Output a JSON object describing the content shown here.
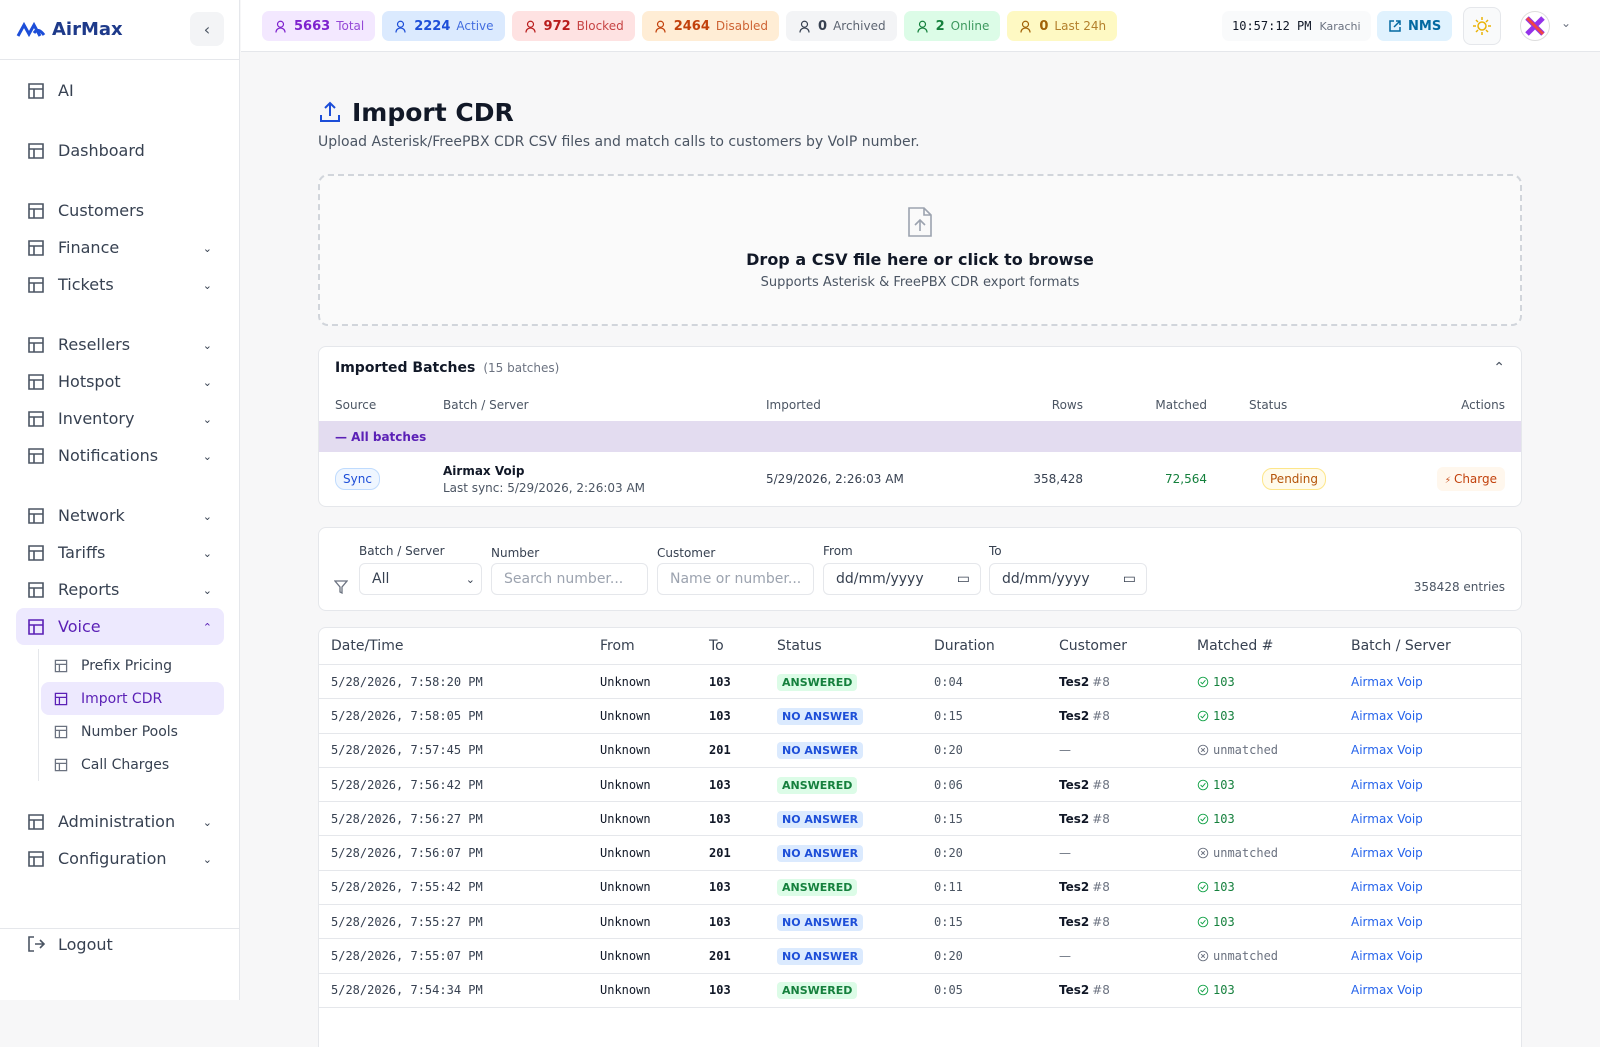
{
  "brand": "AirMax",
  "sidebar": {
    "groups": [
      [
        "AI"
      ],
      [
        "Dashboard"
      ],
      [
        "Customers",
        "Finance",
        "Tickets"
      ],
      [
        "Resellers",
        "Hotspot",
        "Inventory",
        "Notifications"
      ],
      [
        "Network",
        "Tariffs",
        "Reports",
        "Voice"
      ],
      [
        "Administration",
        "Configuration"
      ]
    ],
    "voice_submenu": [
      "Prefix Pricing",
      "Import CDR",
      "Number Pools",
      "Call Charges"
    ],
    "logout": "Logout"
  },
  "topbar": {
    "stats": [
      {
        "value": 5663,
        "label": "Total"
      },
      {
        "value": 2224,
        "label": "Active"
      },
      {
        "value": 972,
        "label": "Blocked"
      },
      {
        "value": 2464,
        "label": "Disabled"
      },
      {
        "value": 0,
        "label": "Archived"
      },
      {
        "value": 2,
        "label": "Online"
      },
      {
        "value": 0,
        "label": "Last 24h"
      }
    ],
    "time": "10:57:12 PM",
    "timezone": "Karachi",
    "nms": "NMS"
  },
  "header": {
    "title": "Import CDR",
    "subtitle": "Upload Asterisk/FreePBX CDR CSV files and match calls to customers by VoIP number."
  },
  "dropzone": {
    "title": "Drop a CSV file here or click to browse",
    "subtitle": "Supports Asterisk & FreePBX CDR export formats"
  },
  "batches": {
    "title": "Imported Batches",
    "count": "(15 batches)",
    "columns": [
      "Source",
      "Batch / Server",
      "Imported",
      "Rows",
      "Matched",
      "Status",
      "Actions"
    ],
    "group": "— All batches",
    "rows": [
      {
        "source": "Sync",
        "name": "Airmax Voip",
        "last_sync": "Last sync: 5/29/2026, 2:26:03 AM",
        "imported": "5/29/2026, 2:26:03 AM",
        "rows": "358,428",
        "matched": "72,564",
        "status": "Pending",
        "action": "Charge"
      }
    ]
  },
  "filters": {
    "labels": [
      "Batch / Server",
      "Number",
      "Customer",
      "From",
      "To"
    ],
    "batch_value": "All",
    "number_placeholder": "Search number...",
    "customer_placeholder": "Name or number...",
    "from_value": "dd/mm/yyyy",
    "to_value": "dd/mm/yyyy",
    "entries": "358428 entries"
  },
  "table": {
    "columns": [
      "Date/Time",
      "From",
      "To",
      "Status",
      "Duration",
      "Customer",
      "Matched #",
      "Batch / Server"
    ],
    "rows": [
      [
        "5/28/2026, 7:58:20 PM",
        "Unknown",
        "103",
        "ANSWERED",
        "0:04",
        "Tes2",
        "#8",
        "103",
        "Airmax Voip"
      ],
      [
        "5/28/2026, 7:58:05 PM",
        "Unknown",
        "103",
        "NO ANSWER",
        "0:15",
        "Tes2",
        "#8",
        "103",
        "Airmax Voip"
      ],
      [
        "5/28/2026, 7:57:45 PM",
        "Unknown",
        "201",
        "NO ANSWER",
        "0:20",
        "—",
        null,
        "unmatched",
        "Airmax Voip"
      ],
      [
        "5/28/2026, 7:56:42 PM",
        "Unknown",
        "103",
        "ANSWERED",
        "0:06",
        "Tes2",
        "#8",
        "103",
        "Airmax Voip"
      ],
      [
        "5/28/2026, 7:56:27 PM",
        "Unknown",
        "103",
        "NO ANSWER",
        "0:15",
        "Tes2",
        "#8",
        "103",
        "Airmax Voip"
      ],
      [
        "5/28/2026, 7:56:07 PM",
        "Unknown",
        "201",
        "NO ANSWER",
        "0:20",
        "—",
        null,
        "unmatched",
        "Airmax Voip"
      ],
      [
        "5/28/2026, 7:55:42 PM",
        "Unknown",
        "103",
        "ANSWERED",
        "0:11",
        "Tes2",
        "#8",
        "103",
        "Airmax Voip"
      ],
      [
        "5/28/2026, 7:55:27 PM",
        "Unknown",
        "103",
        "NO ANSWER",
        "0:15",
        "Tes2",
        "#8",
        "103",
        "Airmax Voip"
      ],
      [
        "5/28/2026, 7:55:07 PM",
        "Unknown",
        "201",
        "NO ANSWER",
        "0:20",
        "—",
        null,
        "unmatched",
        "Airmax Voip"
      ],
      [
        "5/28/2026, 7:54:34 PM",
        "Unknown",
        "103",
        "ANSWERED",
        "0:05",
        "Tes2",
        "#8",
        "103",
        "Airmax Voip"
      ]
    ]
  }
}
